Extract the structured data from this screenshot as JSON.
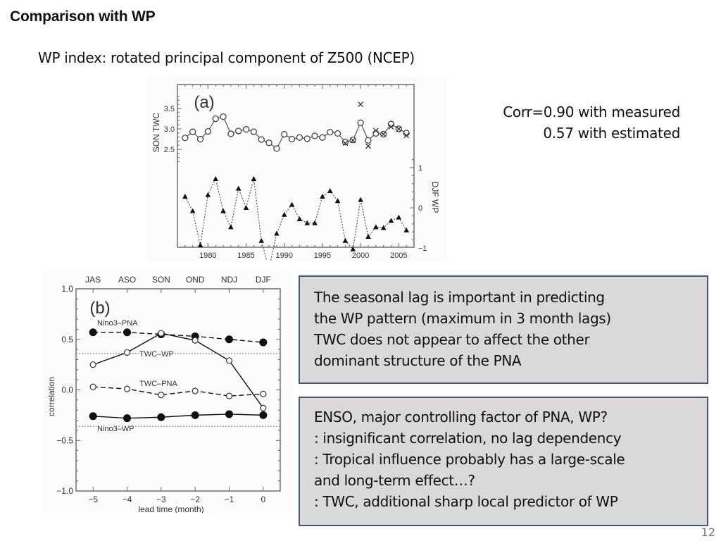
{
  "slide": {
    "title": "Comparison with WP",
    "subtitle": "WP index: rotated principal component of Z500 (NCEP)",
    "corr_lines": [
      "Corr=0.90 with measured",
      "0.57 with estimated"
    ],
    "box1_lines": [
      "The seasonal lag is important in predicting",
      "the WP pattern (maximum in 3 month lags)",
      "TWC does not appear to affect the other",
      "dominant structure of the PNA"
    ],
    "box2_lines": [
      "ENSO, major controlling factor of PNA, WP?",
      ": insignificant correlation, no lag dependency",
      ": Tropical influence probably has a large-scale",
      "and long-term effect…?",
      ": TWC, additional sharp local predictor of WP"
    ],
    "page_number": "12"
  },
  "chart_data": [
    {
      "type": "line",
      "panel_label": "(a)",
      "x": [
        1977,
        1978,
        1979,
        1980,
        1981,
        1982,
        1983,
        1984,
        1985,
        1986,
        1987,
        1988,
        1989,
        1990,
        1991,
        1992,
        1993,
        1994,
        1995,
        1996,
        1997,
        1998,
        1999,
        2000,
        2001,
        2002,
        2003,
        2004,
        2005,
        2006
      ],
      "xticks": [
        1980,
        1985,
        1990,
        1995,
        2000,
        2005
      ],
      "xlim": [
        1976,
        2007
      ],
      "ylabel_left": "SON TWC",
      "yticks_left": [
        2.5,
        3.0,
        3.5
      ],
      "ylabel_right": "DJF WP",
      "yticks_right": [
        -1,
        0,
        1
      ],
      "series": [
        {
          "name": "SON TWC (estimated)",
          "axis": "left",
          "marker": "open-circle",
          "line": "solid",
          "values": [
            2.78,
            2.93,
            2.75,
            2.94,
            3.25,
            3.3,
            2.88,
            2.95,
            2.99,
            2.93,
            2.74,
            2.66,
            2.52,
            2.87,
            2.75,
            2.79,
            2.76,
            2.83,
            2.79,
            2.92,
            2.89,
            2.68,
            2.73,
            3.15,
            2.72,
            2.89,
            2.87,
            3.12,
            3.0,
            2.9
          ]
        },
        {
          "name": "SON TWC (measured)",
          "axis": "left",
          "marker": "x",
          "x": [
            1998,
            1999,
            2000,
            2001,
            2002,
            2003,
            2004,
            2005,
            2006
          ],
          "values": [
            2.65,
            2.72,
            3.6,
            2.58,
            2.96,
            2.87,
            3.05,
            3.0,
            2.84
          ]
        },
        {
          "name": "DJF WP",
          "axis": "right",
          "marker": "filled-triangle",
          "line": "dotted",
          "values": [
            0.28,
            -0.08,
            -0.93,
            0.32,
            0.72,
            -0.08,
            -0.48,
            0.48,
            0.0,
            0.72,
            -0.82,
            -1.52,
            -0.64,
            -0.17,
            0.08,
            -0.28,
            -0.38,
            -0.38,
            0.28,
            0.42,
            0.17,
            -0.82,
            -1.03,
            0.2,
            -0.72,
            -0.48,
            -0.5,
            -0.32,
            -0.24,
            -0.56
          ]
        }
      ]
    },
    {
      "type": "line",
      "panel_label": "(b)",
      "x": [
        -5,
        -4,
        -3,
        -2,
        -1,
        0
      ],
      "xticks": [
        -5,
        -4,
        -3,
        -2,
        -1,
        0
      ],
      "xlim": [
        -5.5,
        0.5
      ],
      "top_labels": [
        "JAS",
        "ASO",
        "SON",
        "OND",
        "NDJ",
        "DJF"
      ],
      "xlabel": "lead time (month)",
      "ylabel": "correlation",
      "ylim": [
        -1.0,
        1.0
      ],
      "yticks": [
        -1.0,
        -0.5,
        0.0,
        0.5,
        1.0
      ],
      "significance_lines": [
        0.36,
        -0.36
      ],
      "series": [
        {
          "name": "Nino3–PNA",
          "marker": "filled-circle",
          "line": "dashed",
          "values": [
            0.57,
            0.57,
            0.55,
            0.53,
            0.5,
            0.47
          ]
        },
        {
          "name": "TWC–WP",
          "marker": "open-circle",
          "line": "solid",
          "values": [
            0.25,
            0.37,
            0.56,
            0.49,
            0.29,
            -0.18
          ]
        },
        {
          "name": "TWC–PNA",
          "marker": "open-circle",
          "line": "dashed",
          "values": [
            0.03,
            0.01,
            -0.05,
            -0.01,
            -0.06,
            -0.04
          ]
        },
        {
          "name": "Nino3–WP",
          "marker": "filled-circle",
          "line": "solid",
          "values": [
            -0.26,
            -0.28,
            -0.27,
            -0.25,
            -0.24,
            -0.25
          ]
        }
      ]
    }
  ]
}
